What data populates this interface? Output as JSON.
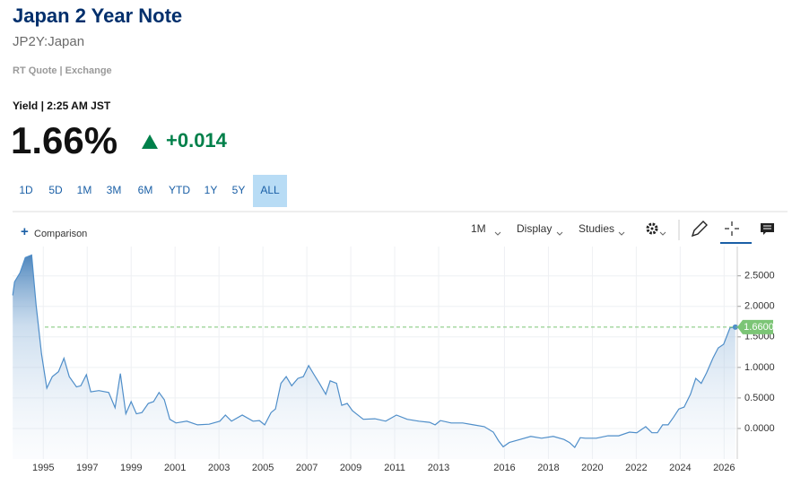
{
  "header": {
    "title": "Japan 2 Year Note",
    "symbol": "JP2Y:Japan",
    "source": "RT Quote | Exchange",
    "time": "Yield | 2:25 AM JST",
    "last": "1.66%",
    "change": "+0.014"
  },
  "ranges": [
    "1D",
    "5D",
    "1M",
    "3M",
    "6M",
    "YTD",
    "1Y",
    "5Y",
    "ALL"
  ],
  "selected_range": "ALL",
  "toolbar": {
    "comparison": "Comparison",
    "interval": "1M",
    "display": "Display",
    "studies": "Studies"
  },
  "chart_data": {
    "type": "line",
    "x": [
      1993.61,
      1993.69,
      1993.94,
      1994.18,
      1994.47,
      1994.67,
      1994.92,
      1995.16,
      1995.41,
      1995.69,
      1995.94,
      1996.18,
      1996.51,
      1996.71,
      1996.96,
      1997.16,
      1997.53,
      1997.98,
      1998.27,
      1998.51,
      1998.76,
      1999.0,
      1999.24,
      1999.49,
      1999.78,
      2000.02,
      2000.27,
      2000.51,
      2000.76,
      2001.04,
      2001.53,
      2002.02,
      2002.55,
      2003.04,
      2003.29,
      2003.57,
      2004.06,
      2004.55,
      2004.84,
      2005.08,
      2005.37,
      2005.57,
      2005.82,
      2006.06,
      2006.31,
      2006.59,
      2006.84,
      2007.08,
      2007.33,
      2007.57,
      2007.86,
      2008.06,
      2008.35,
      2008.59,
      2008.84,
      2009.08,
      2009.57,
      2010.1,
      2010.59,
      2011.08,
      2011.57,
      2012.1,
      2012.59,
      2012.84,
      2013.08,
      2013.57,
      2014.1,
      2014.59,
      2015.08,
      2015.49,
      2015.73,
      2015.94,
      2016.22,
      2016.71,
      2017.2,
      2017.69,
      2018.22,
      2018.71,
      2018.96,
      2019.2,
      2019.45,
      2019.69,
      2020.18,
      2020.71,
      2021.2,
      2021.69,
      2022.02,
      2022.43,
      2022.71,
      2022.96,
      2023.2,
      2023.45,
      2023.69,
      2023.94,
      2024.18,
      2024.47,
      2024.71,
      2024.96,
      2025.2,
      2025.49,
      2025.73,
      2025.98,
      2026.27,
      2026.51
    ],
    "series": [
      {
        "color": "#4f8ec9",
        "values": [
          2.18,
          2.4,
          2.55,
          2.8,
          2.84,
          2.03,
          1.22,
          0.66,
          0.85,
          0.93,
          1.15,
          0.85,
          0.68,
          0.7,
          0.88,
          0.6,
          0.62,
          0.59,
          0.34,
          0.9,
          0.24,
          0.44,
          0.24,
          0.26,
          0.41,
          0.44,
          0.59,
          0.47,
          0.15,
          0.09,
          0.12,
          0.06,
          0.07,
          0.12,
          0.22,
          0.12,
          0.22,
          0.12,
          0.13,
          0.06,
          0.26,
          0.32,
          0.74,
          0.85,
          0.7,
          0.82,
          0.85,
          1.03,
          0.88,
          0.74,
          0.56,
          0.78,
          0.74,
          0.38,
          0.41,
          0.29,
          0.15,
          0.16,
          0.12,
          0.22,
          0.15,
          0.12,
          0.1,
          0.06,
          0.13,
          0.09,
          0.09,
          0.06,
          0.03,
          -0.06,
          -0.2,
          -0.3,
          -0.23,
          -0.18,
          -0.13,
          -0.16,
          -0.13,
          -0.18,
          -0.23,
          -0.31,
          -0.15,
          -0.16,
          -0.16,
          -0.12,
          -0.12,
          -0.06,
          -0.07,
          0.03,
          -0.07,
          -0.07,
          0.06,
          0.06,
          0.18,
          0.32,
          0.35,
          0.56,
          0.82,
          0.74,
          0.91,
          1.15,
          1.32,
          1.38,
          1.65,
          1.66
        ]
      }
    ],
    "xlim": [
      1993.6,
      2026.6
    ],
    "xticks": [
      1995,
      1997,
      1999,
      2001,
      2003,
      2005,
      2007,
      2009,
      2011,
      2013,
      2016,
      2018,
      2020,
      2022,
      2024,
      2026
    ],
    "ylim": [
      -0.5,
      2.98
    ],
    "yticks": [
      {
        "value": 0,
        "label": "0.0000"
      },
      {
        "value": 0.5,
        "label": "0.5000"
      },
      {
        "value": 1,
        "label": "1.0000"
      },
      {
        "value": 1.5,
        "label": "1.5000"
      },
      {
        "value": 2,
        "label": "2.0000"
      },
      {
        "value": 2.5,
        "label": "2.5000"
      }
    ],
    "current": {
      "value": 1.66,
      "label": "1.6600",
      "color": "#7cc576"
    },
    "grid": true
  }
}
